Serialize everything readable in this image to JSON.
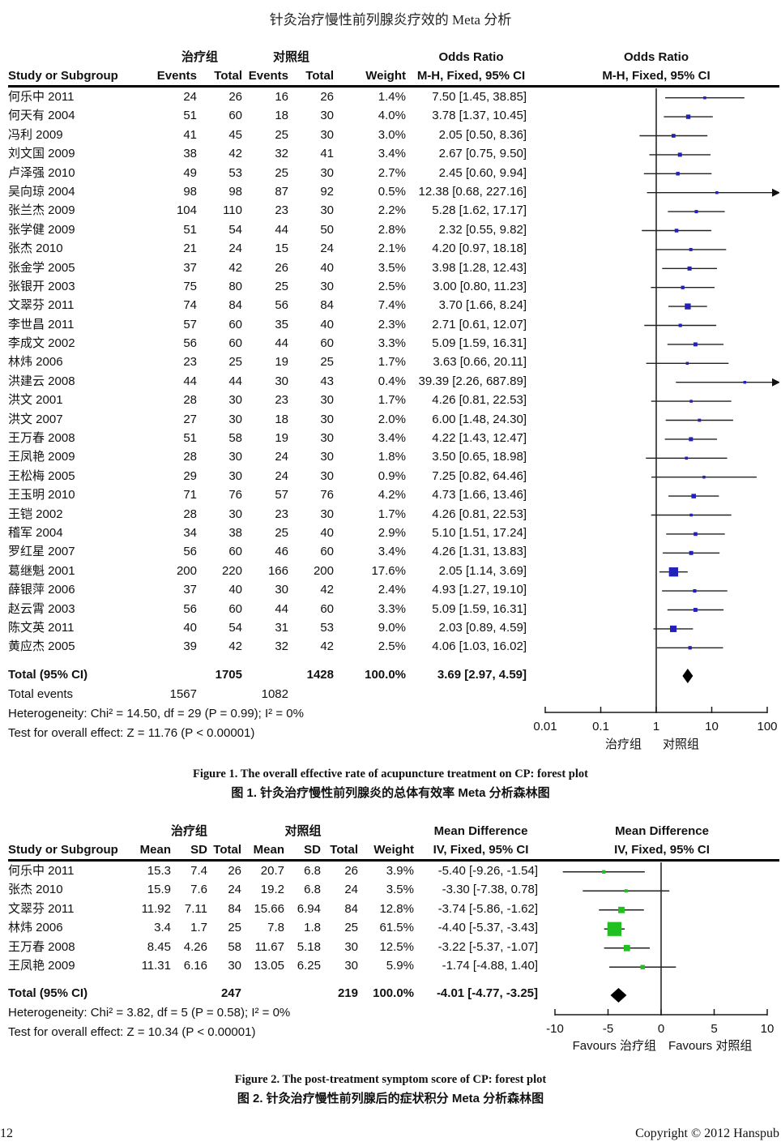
{
  "page": {
    "title": "针灸治疗慢性前列腺炎疗效的 Meta 分析",
    "page_number": "12",
    "copyright": "Copyright © 2012 Hanspub"
  },
  "figure1": {
    "caption_en": "Figure 1. The overall effective rate of acupuncture treatment on CP: forest plot",
    "caption_zh": "图 1. 针灸治疗慢性前列腺炎的总体有效率 Meta 分析森林图"
  },
  "figure2": {
    "caption_en": "Figure 2. The post-treatment symptom score of CP: forest plot",
    "caption_zh": "图 2. 针灸治疗慢性前列腺后的症状积分 Meta 分析森林图"
  },
  "chart_data": [
    {
      "type": "forest",
      "effect_measure": "Odds Ratio",
      "headers": {
        "study": "Study or Subgroup",
        "group1": "治疗组",
        "group2": "对照组",
        "events": "Events",
        "total": "Total",
        "weight": "Weight",
        "effect": "Odds Ratio",
        "ci": "M-H, Fixed, 95% CI"
      },
      "marker_color": "#2222bb",
      "studies": [
        {
          "name": "何乐中 2011",
          "e1": 24,
          "n1": 26,
          "e2": 16,
          "n2": 26,
          "weight": 1.4,
          "est": 7.5,
          "lo": 1.45,
          "hi": 38.85
        },
        {
          "name": "何天有 2004",
          "e1": 51,
          "n1": 60,
          "e2": 18,
          "n2": 30,
          "weight": 4.0,
          "est": 3.78,
          "lo": 1.37,
          "hi": 10.45
        },
        {
          "name": "冯利 2009",
          "e1": 41,
          "n1": 45,
          "e2": 25,
          "n2": 30,
          "weight": 3.0,
          "est": 2.05,
          "lo": 0.5,
          "hi": 8.36
        },
        {
          "name": "刘文国 2009",
          "e1": 38,
          "n1": 42,
          "e2": 32,
          "n2": 41,
          "weight": 3.4,
          "est": 2.67,
          "lo": 0.75,
          "hi": 9.5
        },
        {
          "name": "卢泽强 2010",
          "e1": 49,
          "n1": 53,
          "e2": 25,
          "n2": 30,
          "weight": 2.7,
          "est": 2.45,
          "lo": 0.6,
          "hi": 9.94
        },
        {
          "name": "吴向琼 2004",
          "e1": 98,
          "n1": 98,
          "e2": 87,
          "n2": 92,
          "weight": 0.5,
          "est": 12.38,
          "lo": 0.68,
          "hi": 227.16
        },
        {
          "name": "张兰杰 2009",
          "e1": 104,
          "n1": 110,
          "e2": 23,
          "n2": 30,
          "weight": 2.2,
          "est": 5.28,
          "lo": 1.62,
          "hi": 17.17
        },
        {
          "name": "张学健 2009",
          "e1": 51,
          "n1": 54,
          "e2": 44,
          "n2": 50,
          "weight": 2.8,
          "est": 2.32,
          "lo": 0.55,
          "hi": 9.82
        },
        {
          "name": "张杰 2010",
          "e1": 21,
          "n1": 24,
          "e2": 15,
          "n2": 24,
          "weight": 2.1,
          "est": 4.2,
          "lo": 0.97,
          "hi": 18.18
        },
        {
          "name": "张金学 2005",
          "e1": 37,
          "n1": 42,
          "e2": 26,
          "n2": 40,
          "weight": 3.5,
          "est": 3.98,
          "lo": 1.28,
          "hi": 12.43
        },
        {
          "name": "张银开 2003",
          "e1": 75,
          "n1": 80,
          "e2": 25,
          "n2": 30,
          "weight": 2.5,
          "est": 3.0,
          "lo": 0.8,
          "hi": 11.23
        },
        {
          "name": "文翠芬 2011",
          "e1": 74,
          "n1": 84,
          "e2": 56,
          "n2": 84,
          "weight": 7.4,
          "est": 3.7,
          "lo": 1.66,
          "hi": 8.24
        },
        {
          "name": "李世昌 2011",
          "e1": 57,
          "n1": 60,
          "e2": 35,
          "n2": 40,
          "weight": 2.3,
          "est": 2.71,
          "lo": 0.61,
          "hi": 12.07
        },
        {
          "name": "李成文 2002",
          "e1": 56,
          "n1": 60,
          "e2": 44,
          "n2": 60,
          "weight": 3.3,
          "est": 5.09,
          "lo": 1.59,
          "hi": 16.31
        },
        {
          "name": "林炜 2006",
          "e1": 23,
          "n1": 25,
          "e2": 19,
          "n2": 25,
          "weight": 1.7,
          "est": 3.63,
          "lo": 0.66,
          "hi": 20.11
        },
        {
          "name": "洪建云 2008",
          "e1": 44,
          "n1": 44,
          "e2": 30,
          "n2": 43,
          "weight": 0.4,
          "est": 39.39,
          "lo": 2.26,
          "hi": 687.89
        },
        {
          "name": "洪文 2001",
          "e1": 28,
          "n1": 30,
          "e2": 23,
          "n2": 30,
          "weight": 1.7,
          "est": 4.26,
          "lo": 0.81,
          "hi": 22.53
        },
        {
          "name": "洪文 2007",
          "e1": 27,
          "n1": 30,
          "e2": 18,
          "n2": 30,
          "weight": 2.0,
          "est": 6.0,
          "lo": 1.48,
          "hi": 24.3
        },
        {
          "name": "王万春 2008",
          "e1": 51,
          "n1": 58,
          "e2": 19,
          "n2": 30,
          "weight": 3.4,
          "est": 4.22,
          "lo": 1.43,
          "hi": 12.47
        },
        {
          "name": "王凤艳 2009",
          "e1": 28,
          "n1": 30,
          "e2": 24,
          "n2": 30,
          "weight": 1.8,
          "est": 3.5,
          "lo": 0.65,
          "hi": 18.98
        },
        {
          "name": "王松梅 2005",
          "e1": 29,
          "n1": 30,
          "e2": 24,
          "n2": 30,
          "weight": 0.9,
          "est": 7.25,
          "lo": 0.82,
          "hi": 64.46
        },
        {
          "name": "王玉明 2010",
          "e1": 71,
          "n1": 76,
          "e2": 57,
          "n2": 76,
          "weight": 4.2,
          "est": 4.73,
          "lo": 1.66,
          "hi": 13.46
        },
        {
          "name": "王铠 2002",
          "e1": 28,
          "n1": 30,
          "e2": 23,
          "n2": 30,
          "weight": 1.7,
          "est": 4.26,
          "lo": 0.81,
          "hi": 22.53
        },
        {
          "name": "稽军 2004",
          "e1": 34,
          "n1": 38,
          "e2": 25,
          "n2": 40,
          "weight": 2.9,
          "est": 5.1,
          "lo": 1.51,
          "hi": 17.24
        },
        {
          "name": "罗红星 2007",
          "e1": 56,
          "n1": 60,
          "e2": 46,
          "n2": 60,
          "weight": 3.4,
          "est": 4.26,
          "lo": 1.31,
          "hi": 13.83
        },
        {
          "name": "葛继魁 2001",
          "e1": 200,
          "n1": 220,
          "e2": 166,
          "n2": 200,
          "weight": 17.6,
          "est": 2.05,
          "lo": 1.14,
          "hi": 3.69
        },
        {
          "name": "薛银萍 2006",
          "e1": 37,
          "n1": 40,
          "e2": 30,
          "n2": 42,
          "weight": 2.4,
          "est": 4.93,
          "lo": 1.27,
          "hi": 19.1
        },
        {
          "name": "赵云霄 2003",
          "e1": 56,
          "n1": 60,
          "e2": 44,
          "n2": 60,
          "weight": 3.3,
          "est": 5.09,
          "lo": 1.59,
          "hi": 16.31
        },
        {
          "name": "陈文英 2011",
          "e1": 40,
          "n1": 54,
          "e2": 31,
          "n2": 53,
          "weight": 9.0,
          "est": 2.03,
          "lo": 0.89,
          "hi": 4.59
        },
        {
          "name": "黄应杰 2005",
          "e1": 39,
          "n1": 42,
          "e2": 32,
          "n2": 42,
          "weight": 2.5,
          "est": 4.06,
          "lo": 1.03,
          "hi": 16.02
        }
      ],
      "total": {
        "label": "Total (95% CI)",
        "n1": 1705,
        "n2": 1428,
        "weight": 100.0,
        "est": 3.69,
        "lo": 2.97,
        "hi": 4.59
      },
      "total_events": {
        "label": "Total events",
        "e1": 1567,
        "e2": 1082
      },
      "heterogeneity": "Heterogeneity: Chi² = 14.50, df = 29 (P = 0.99); I² = 0%",
      "overall_test": "Test for overall effect: Z = 11.76 (P < 0.00001)",
      "axis": {
        "scale": "log",
        "ticks": [
          0.01,
          0.1,
          1,
          10,
          100
        ],
        "left_label": "治疗组",
        "right_label": "对照组"
      }
    },
    {
      "type": "forest",
      "effect_measure": "Mean Difference",
      "headers": {
        "study": "Study or Subgroup",
        "group1": "治疗组",
        "group2": "对照组",
        "mean": "Mean",
        "sd": "SD",
        "total": "Total",
        "weight": "Weight",
        "effect": "Mean Difference",
        "ci": "IV, Fixed, 95% CI"
      },
      "marker_color": "#1fc01f",
      "studies": [
        {
          "name": "何乐中 2011",
          "mean1": "15.3",
          "sd1": "7.4",
          "n1": 26,
          "mean2": "20.7",
          "sd2": "6.8",
          "n2": 26,
          "weight": 3.9,
          "est": -5.4,
          "lo": -9.26,
          "hi": -1.54
        },
        {
          "name": "张杰 2010",
          "mean1": "15.9",
          "sd1": "7.6",
          "n1": 24,
          "mean2": "19.2",
          "sd2": "6.8",
          "n2": 24,
          "weight": 3.5,
          "est": -3.3,
          "lo": -7.38,
          "hi": 0.78
        },
        {
          "name": "文翠芬 2011",
          "mean1": "11.92",
          "sd1": "7.11",
          "n1": 84,
          "mean2": "15.66",
          "sd2": "6.94",
          "n2": 84,
          "weight": 12.8,
          "est": -3.74,
          "lo": -5.86,
          "hi": -1.62
        },
        {
          "name": "林炜 2006",
          "mean1": "3.4",
          "sd1": "1.7",
          "n1": 25,
          "mean2": "7.8",
          "sd2": "1.8",
          "n2": 25,
          "weight": 61.5,
          "est": -4.4,
          "lo": -5.37,
          "hi": -3.43
        },
        {
          "name": "王万春 2008",
          "mean1": "8.45",
          "sd1": "4.26",
          "n1": 58,
          "mean2": "11.67",
          "sd2": "5.18",
          "n2": 30,
          "weight": 12.5,
          "est": -3.22,
          "lo": -5.37,
          "hi": -1.07
        },
        {
          "name": "王凤艳 2009",
          "mean1": "11.31",
          "sd1": "6.16",
          "n1": 30,
          "mean2": "13.05",
          "sd2": "6.25",
          "n2": 30,
          "weight": 5.9,
          "est": -1.74,
          "lo": -4.88,
          "hi": 1.4
        }
      ],
      "total": {
        "label": "Total (95% CI)",
        "n1": 247,
        "n2": 219,
        "weight": 100.0,
        "est": -4.01,
        "lo": -4.77,
        "hi": -3.25
      },
      "heterogeneity": "Heterogeneity: Chi² = 3.82, df = 5 (P = 0.58); I² = 0%",
      "overall_test": "Test for overall effect: Z = 10.34 (P < 0.00001)",
      "axis": {
        "scale": "linear",
        "ticks": [
          -10,
          -5,
          0,
          5,
          10
        ],
        "left_label": "Favours 治疗组",
        "right_label": "Favours 对照组"
      }
    }
  ]
}
